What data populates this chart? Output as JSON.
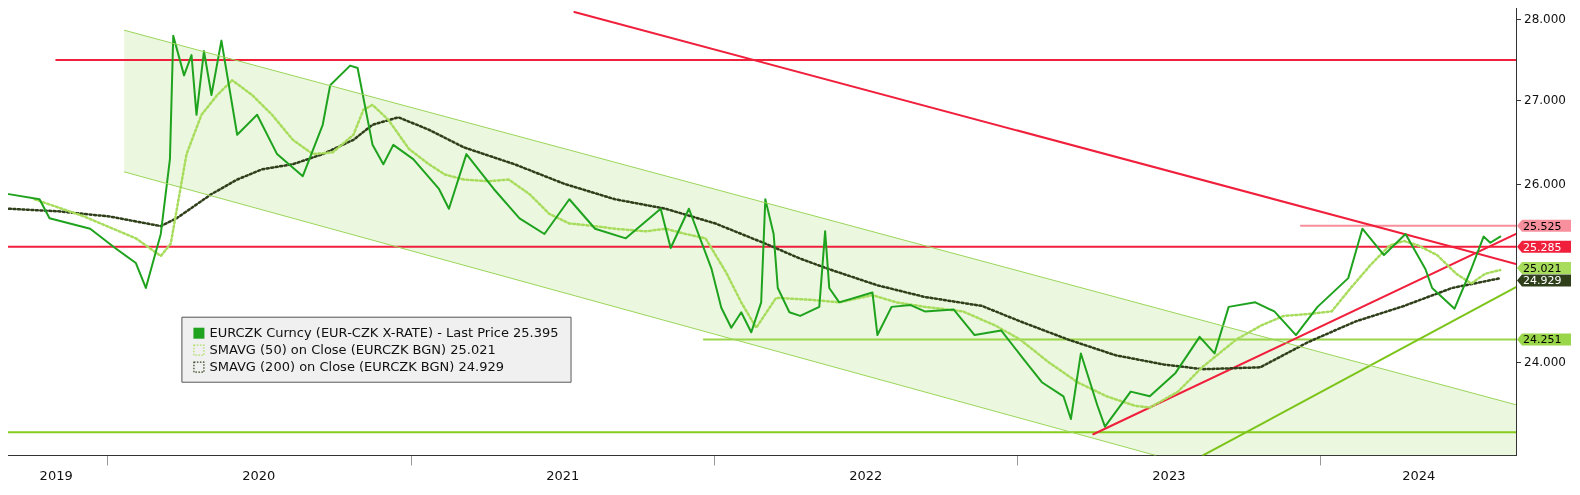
{
  "chart_data": {
    "type": "line",
    "log": "y",
    "marker": "none",
    "legend": "bottom left",
    "xlim": [
      "2019-09-03",
      "2024-08-23"
    ],
    "xticks": [
      {
        "value": "2019-10-31",
        "label": "2019"
      },
      {
        "value": "2020-01-01",
        "label": null
      },
      {
        "value": "2020-07-01",
        "label": "2020"
      },
      {
        "value": "2021-01-01",
        "label": null
      },
      {
        "value": "2021-07-02",
        "label": "2021"
      },
      {
        "value": "2022-01-01",
        "label": null
      },
      {
        "value": "2022-07-02",
        "label": "2022"
      },
      {
        "value": "2023-01-01",
        "label": null
      },
      {
        "value": "2023-07-02",
        "label": "2023"
      },
      {
        "value": "2024-01-01",
        "label": null
      },
      {
        "value": "2024-04-28",
        "label": "2024"
      }
    ],
    "ylim": [
      23.02,
      28.15
    ],
    "yticks": [
      {
        "value": 24,
        "label": "24.000"
      },
      {
        "value": 24.251,
        "label": "24.251"
      },
      {
        "value": 24.929,
        "label": "24.929"
      },
      {
        "value": 25.021,
        "label": "25.021"
      },
      {
        "value": 25.285,
        "label": "25.285"
      },
      {
        "value": 25.525,
        "label": "25.525"
      },
      {
        "value": 26,
        "label": "26.000"
      },
      {
        "value": 27,
        "label": "27.000"
      },
      {
        "value": 28,
        "label": "28.000"
      }
    ],
    "ref_lines": [
      {
        "axis": "y",
        "value": 25.285,
        "color": "#f0203c"
      },
      {
        "axis": "y",
        "value": 23.26,
        "color": "#86cc1e"
      }
    ],
    "series": [
      {
        "type": "area",
        "color": "#9ad65a",
        "x": [
          "2020-01-21",
          "2023-06-16",
          "2024-08-23"
        ],
        "values": [
          27.87,
          24.6,
          23.55
        ]
      },
      {
        "color": "#9ad65a",
        "x": [
          "2020-01-21",
          "2023-06-16"
        ],
        "values": [
          26.15,
          23.02
        ]
      },
      {
        "name": "EURCZK Curncy (EUR-CZK X-RATE) - Last Price 25.395",
        "color": "#1fa31f",
        "x": [
          "2019-09-04",
          "2019-10-11",
          "2019-10-23",
          "2019-12-11",
          "2020-01-10",
          "2020-02-04",
          "2020-02-16",
          "2020-03-05",
          "2020-03-16",
          "2020-03-20",
          "2020-04-02",
          "2020-04-11",
          "2020-04-17",
          "2020-04-26",
          "2020-05-05",
          "2020-05-17",
          "2020-06-05",
          "2020-06-29",
          "2020-07-23",
          "2020-08-23",
          "2020-09-16",
          "2020-09-25",
          "2020-10-19",
          "2020-10-28",
          "2020-11-15",
          "2020-11-28",
          "2020-12-10",
          "2021-01-03",
          "2021-02-03",
          "2021-02-15",
          "2021-03-08",
          "2021-04-10",
          "2021-05-11",
          "2021-06-10",
          "2021-07-10",
          "2021-08-10",
          "2021-09-16",
          "2021-10-28",
          "2021-11-09",
          "2021-12-01",
          "2021-12-28",
          "2022-01-09",
          "2022-01-21",
          "2022-02-02",
          "2022-02-14",
          "2022-02-26",
          "2022-03-03",
          "2022-03-13",
          "2022-03-18",
          "2022-04-01",
          "2022-04-14",
          "2022-05-07",
          "2022-05-14",
          "2022-05-19",
          "2022-05-31",
          "2022-07-10",
          "2022-07-16",
          "2022-08-02",
          "2022-08-25",
          "2022-09-11",
          "2022-10-16",
          "2022-11-10",
          "2022-12-12",
          "2023-01-07",
          "2023-01-30",
          "2023-02-25",
          "2023-03-06",
          "2023-03-18",
          "2023-04-07",
          "2023-04-16",
          "2023-05-17",
          "2023-06-09",
          "2023-07-10",
          "2023-08-08",
          "2023-08-26",
          "2023-09-12",
          "2023-10-14",
          "2023-11-06",
          "2023-12-02",
          "2023-12-28",
          "2024-02-03",
          "2024-02-20",
          "2024-03-17",
          "2024-04-12",
          "2024-05-06",
          "2024-05-14",
          "2024-06-10",
          "2024-06-30",
          "2024-07-15",
          "2024-07-23",
          "2024-08-04"
        ],
        "values": [
          25.89,
          25.83,
          25.61,
          25.49,
          25.27,
          25.1,
          24.82,
          25.43,
          26.3,
          27.8,
          27.31,
          27.56,
          26.83,
          27.61,
          27.07,
          27.74,
          26.59,
          26.83,
          26.36,
          26.1,
          26.71,
          27.19,
          27.43,
          27.4,
          26.47,
          26.24,
          26.47,
          26.3,
          25.95,
          25.72,
          26.36,
          25.95,
          25.61,
          25.43,
          25.83,
          25.49,
          25.38,
          25.72,
          25.27,
          25.72,
          25.04,
          24.6,
          24.38,
          24.55,
          24.33,
          24.66,
          25.83,
          25.43,
          24.82,
          24.55,
          24.51,
          24.61,
          25.46,
          24.82,
          24.66,
          24.77,
          24.3,
          24.61,
          24.63,
          24.56,
          24.58,
          24.3,
          24.35,
          24.05,
          23.79,
          23.64,
          23.4,
          24.1,
          23.54,
          23.32,
          23.69,
          23.64,
          23.89,
          24.28,
          24.1,
          24.61,
          24.66,
          24.56,
          24.3,
          24.61,
          24.93,
          25.49,
          25.19,
          25.43,
          25.03,
          24.82,
          24.59,
          25.03,
          25.4,
          25.33,
          25.4
        ]
      },
      {
        "name": "SMAVG (50) on Close (EURCZK BGN) 25.021",
        "color": "#a8dc5c",
        "line_style": "dotted",
        "x": [
          "2019-10-05",
          "2019-12-04",
          "2020-02-04",
          "2020-03-05",
          "2020-03-17",
          "2020-04-05",
          "2020-04-23",
          "2020-05-12",
          "2020-05-30",
          "2020-06-23",
          "2020-07-17",
          "2020-08-11",
          "2020-09-04",
          "2020-09-28",
          "2020-10-23",
          "2020-11-04",
          "2020-11-15",
          "2020-12-04",
          "2020-12-29",
          "2021-01-22",
          "2021-02-10",
          "2021-03-05",
          "2021-04-04",
          "2021-04-28",
          "2021-05-23",
          "2021-06-16",
          "2021-07-10",
          "2021-08-10",
          "2021-09-03",
          "2021-10-10",
          "2021-11-03",
          "2021-11-27",
          "2021-12-21",
          "2022-01-15",
          "2022-02-02",
          "2022-02-20",
          "2022-03-16",
          "2022-04-25",
          "2022-05-31",
          "2022-07-10",
          "2022-08-08",
          "2022-09-11",
          "2022-10-27",
          "2022-12-06",
          "2023-01-04",
          "2023-02-08",
          "2023-03-14",
          "2023-04-18",
          "2023-05-22",
          "2023-06-09",
          "2023-07-13",
          "2023-08-11",
          "2023-09-21",
          "2023-10-20",
          "2023-11-17",
          "2023-12-16",
          "2024-01-14",
          "2024-02-06",
          "2024-03-01",
          "2024-03-24",
          "2024-04-10",
          "2024-04-27",
          "2024-05-20",
          "2024-06-12",
          "2024-06-30",
          "2024-07-17",
          "2024-08-04"
        ],
        "values": [
          25.83,
          25.63,
          25.38,
          25.18,
          25.32,
          26.36,
          26.83,
          27.07,
          27.25,
          27.07,
          26.83,
          26.53,
          26.36,
          26.38,
          26.59,
          26.89,
          26.95,
          26.77,
          26.42,
          26.24,
          26.12,
          26.06,
          26.04,
          26.06,
          25.89,
          25.66,
          25.55,
          25.52,
          25.49,
          25.46,
          25.49,
          25.43,
          25.38,
          24.99,
          24.66,
          24.38,
          24.71,
          24.69,
          24.66,
          24.74,
          24.66,
          24.61,
          24.56,
          24.4,
          24.25,
          24.0,
          23.79,
          23.64,
          23.54,
          23.52,
          23.69,
          23.95,
          24.25,
          24.4,
          24.51,
          24.53,
          24.56,
          24.82,
          25.08,
          25.3,
          25.35,
          25.3,
          25.19,
          24.98,
          24.87,
          24.98,
          25.021
        ]
      },
      {
        "name": "SMAVG (200) on Close (EURCZK BGN) 24.929",
        "color": "#2f3f1a",
        "line_style": "dotted",
        "x": [
          "2019-09-04",
          "2019-11-03",
          "2020-01-04",
          "2020-03-05",
          "2020-03-24",
          "2020-05-05",
          "2020-06-05",
          "2020-07-05",
          "2020-08-11",
          "2020-09-16",
          "2020-10-23",
          "2020-11-15",
          "2020-12-16",
          "2021-01-22",
          "2021-03-05",
          "2021-05-05",
          "2021-07-04",
          "2021-09-03",
          "2021-11-03",
          "2022-01-02",
          "2022-03-03",
          "2022-04-14",
          "2022-05-19",
          "2022-07-16",
          "2022-09-11",
          "2022-11-19",
          "2023-01-04",
          "2023-03-03",
          "2023-04-29",
          "2023-06-26",
          "2023-08-12",
          "2023-10-20",
          "2023-12-16",
          "2024-02-12",
          "2024-04-10",
          "2024-06-07",
          "2024-08-04"
        ],
        "values": [
          25.72,
          25.69,
          25.63,
          25.52,
          25.61,
          25.89,
          26.06,
          26.18,
          26.24,
          26.36,
          26.53,
          26.71,
          26.8,
          26.65,
          26.44,
          26.24,
          26.01,
          25.83,
          25.72,
          25.55,
          25.32,
          25.15,
          25.03,
          24.85,
          24.72,
          24.62,
          24.45,
          24.25,
          24.08,
          23.98,
          23.93,
          23.95,
          24.22,
          24.45,
          24.62,
          24.82,
          24.929
        ]
      },
      {
        "color": "#f0203c",
        "x": [
          "2021-07-16",
          "2024-08-23"
        ],
        "values": [
          28.1,
          25.09
        ]
      },
      {
        "color": "#f0203c",
        "x": [
          "2023-04-02",
          "2024-08-23"
        ],
        "values": [
          23.24,
          25.43
        ]
      },
      {
        "color": "#7cc41a",
        "x": [
          "2023-08-12",
          "2024-08-23"
        ],
        "values": [
          23.02,
          24.83
        ]
      },
      {
        "color": "#f0203c",
        "x": [
          "2019-10-31",
          "2024-08-23"
        ],
        "values": [
          27.5,
          27.5
        ]
      },
      {
        "color": "#9ad64a",
        "x": [
          "2021-12-19",
          "2024-08-23"
        ],
        "values": [
          24.251,
          24.251
        ]
      },
      {
        "color": "#f7909c",
        "x": [
          "2023-12-08",
          "2024-08-23"
        ],
        "values": [
          25.525,
          25.525
        ]
      }
    ]
  }
}
